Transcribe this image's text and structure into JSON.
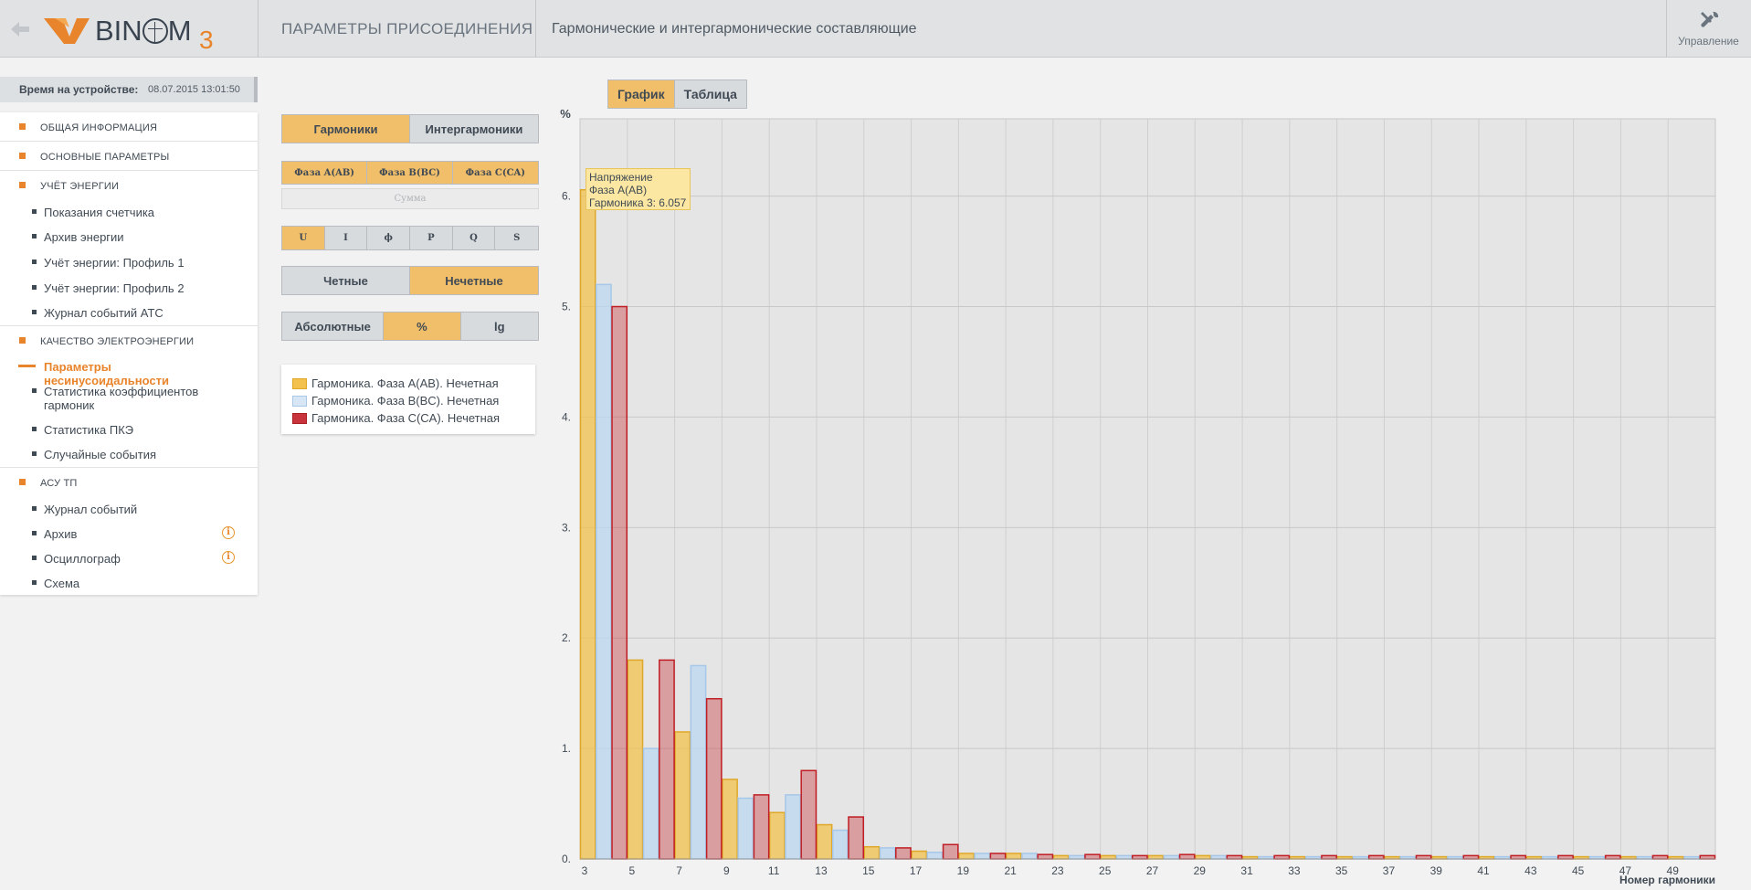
{
  "header": {
    "logo_text": "BIN",
    "logo_text2": "M",
    "logo_sub": "3",
    "section": "ПАРАМЕТРЫ ПРИСОЕДИНЕНИЯ",
    "title": "Гармонические и интергармонические составляющие",
    "control_label": "Управление"
  },
  "device_time": {
    "label": "Время на устройстве:",
    "value": "08.07.2015 13:01:50"
  },
  "nav": {
    "sec_general": "ОБЩАЯ ИНФОРМАЦИЯ",
    "sec_main": "ОСНОВНЫЕ ПАРАМЕТРЫ",
    "sec_energy": "УЧЁТ ЭНЕРГИИ",
    "energy_items": [
      "Показания счетчика",
      "Архив энергии",
      "Учёт энергии: Профиль 1",
      "Учёт энергии: Профиль 2",
      "Журнал событий АТС"
    ],
    "sec_quality": "КАЧЕСТВО ЭЛЕКТРОЭНЕРГИИ",
    "quality_items": [
      "Параметры несинусоидальности",
      "Статистика коэффициентов гармоник",
      "Статистика ПКЭ",
      "Случайные события"
    ],
    "sec_asu": "АСУ ТП",
    "asu_items": [
      "Журнал событий",
      "Архив",
      "Осциллограф",
      "Схема"
    ]
  },
  "controls": {
    "type_buttons": [
      "Гармоники",
      "Интергармоники"
    ],
    "phase_buttons": [
      "Фаза A(AB)",
      "Фаза B(BC)",
      "Фаза C(CA)"
    ],
    "sum_label": "Сумма",
    "quantity_buttons": [
      "U",
      "I",
      "ϕ",
      "P",
      "Q",
      "S"
    ],
    "parity_buttons": [
      "Четные",
      "Нечетные"
    ],
    "scale_buttons": [
      "Абсолютные",
      "%",
      "lg"
    ]
  },
  "legend": [
    {
      "label": "Гармоника. Фаза A(AB). Нечетная",
      "color": "#f2c14e"
    },
    {
      "label": "Гармоника. Фаза B(BC). Нечетная",
      "color": "#bcd7f0"
    },
    {
      "label": "Гармоника. Фаза C(CA). Нечетная",
      "color": "#c9343a"
    }
  ],
  "view_tabs": [
    "График",
    "Таблица"
  ],
  "tooltip": {
    "line1": "Напряжение",
    "line2": "Фаза A(AB)",
    "line3": "Гармоника 3: 6.057"
  },
  "chart_data": {
    "type": "bar",
    "ylabel": "%",
    "xlabel": "Номер гармоники",
    "ylim": [
      0,
      6.7
    ],
    "yticks": [
      0,
      1,
      2,
      3,
      4,
      5,
      6
    ],
    "ytick_labels": [
      "0.",
      "1.",
      "2.",
      "3.",
      "4.",
      "5.",
      "6."
    ],
    "categories": [
      3,
      5,
      7,
      9,
      11,
      13,
      15,
      17,
      19,
      21,
      23,
      25,
      27,
      29,
      31,
      33,
      35,
      37,
      39,
      41,
      43,
      45,
      47,
      49
    ],
    "series": [
      {
        "name": "Гармоника. Фаза A(AB). Нечетная",
        "values": [
          6.057,
          1.8,
          1.15,
          0.72,
          0.42,
          0.31,
          0.11,
          0.07,
          0.05,
          0.05,
          0.03,
          0.03,
          0.03,
          0.03,
          0.02,
          0.02,
          0.02,
          0.02,
          0.02,
          0.02,
          0.02,
          0.02,
          0.02,
          0.02
        ]
      },
      {
        "name": "Гармоника. Фаза B(BC). Нечетная",
        "values": [
          5.2,
          1.0,
          1.75,
          0.55,
          0.58,
          0.26,
          0.1,
          0.06,
          0.05,
          0.05,
          0.03,
          0.03,
          0.03,
          0.03,
          0.02,
          0.02,
          0.02,
          0.02,
          0.02,
          0.02,
          0.02,
          0.02,
          0.02,
          0.02
        ]
      },
      {
        "name": "Гармоника. Фаза C(CA). Нечетная",
        "values": [
          5.0,
          1.8,
          1.45,
          0.58,
          0.8,
          0.38,
          0.1,
          0.13,
          0.05,
          0.04,
          0.04,
          0.03,
          0.04,
          0.03,
          0.03,
          0.03,
          0.03,
          0.03,
          0.03,
          0.03,
          0.03,
          0.03,
          0.03,
          0.03
        ]
      }
    ]
  }
}
